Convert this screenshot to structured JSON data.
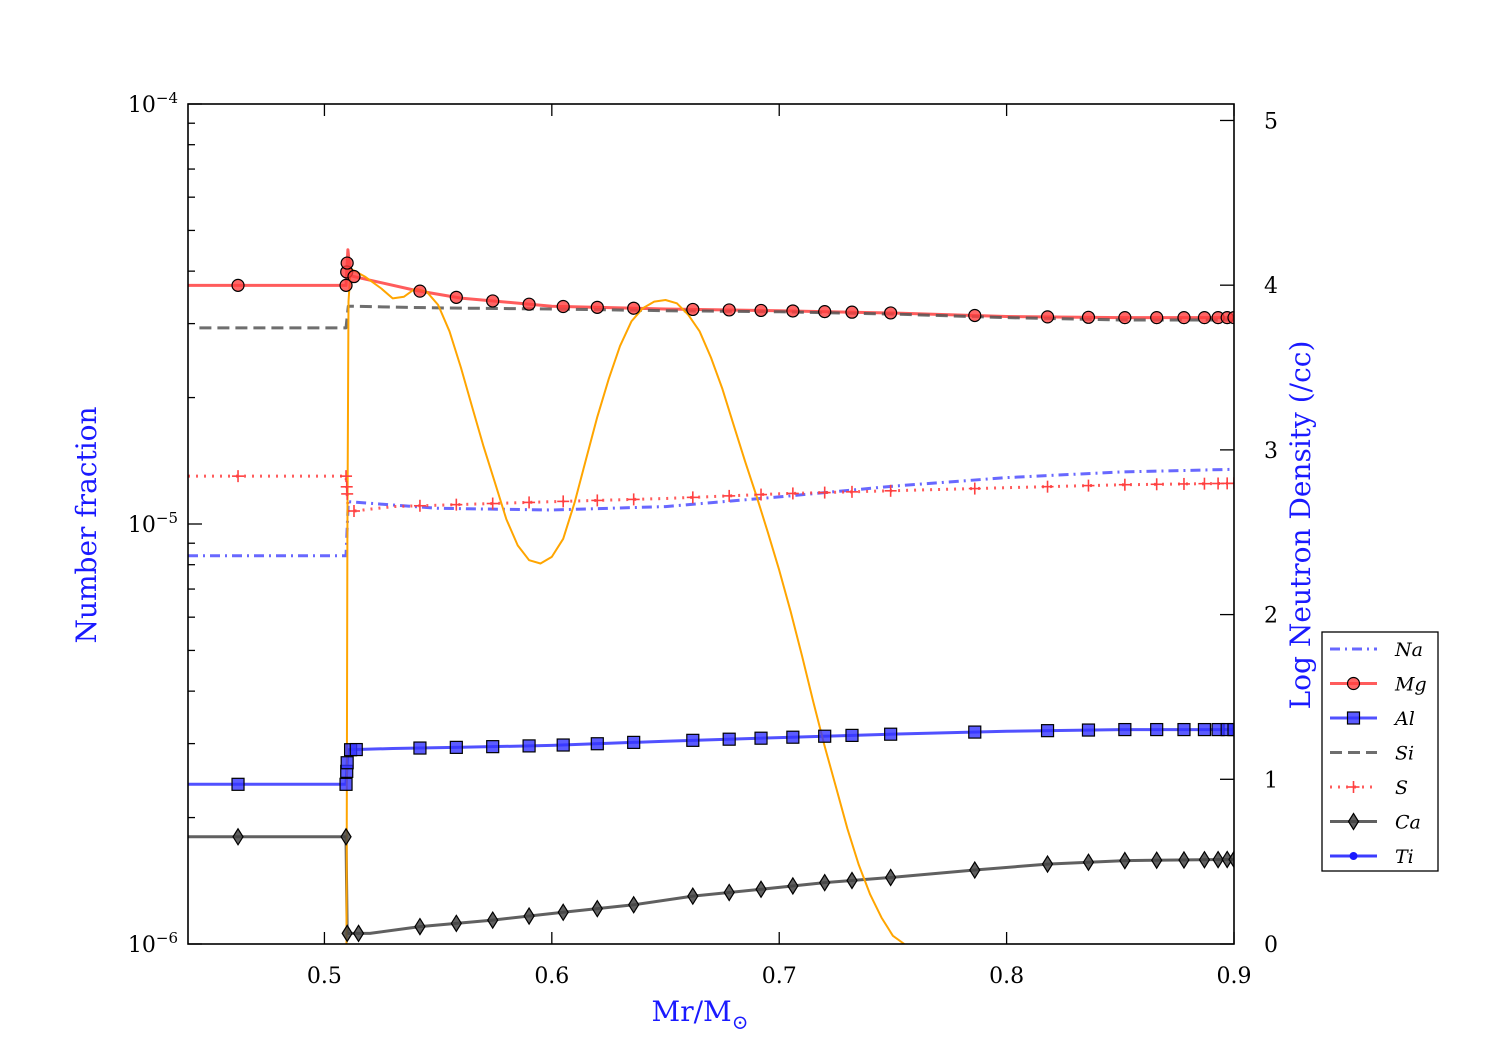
{
  "chart_data": {
    "type": "line",
    "xlabel": "Mr/M",
    "xlabel_sub": "⊙",
    "ylabel_left": "Number fraction",
    "ylabel_right": "Log Neutron Density (/cc)",
    "xlim": [
      0.44,
      0.9
    ],
    "ylim_left": [
      1e-06,
      0.0001
    ],
    "yscale_left": "log",
    "ylim_right": [
      0,
      5.1
    ],
    "x_ticks": [
      "0.5",
      "0.6",
      "0.7",
      "0.8",
      "0.9"
    ],
    "y_left_tick_labels": [
      {
        "value": 1e-06,
        "base": "10",
        "exp": "−6"
      },
      {
        "value": 1e-05,
        "base": "10",
        "exp": "−5"
      },
      {
        "value": 0.0001,
        "base": "10",
        "exp": "−4"
      }
    ],
    "y_right_ticks": [
      "0",
      "1",
      "2",
      "3",
      "4",
      "5"
    ],
    "legend_position": "lower-right",
    "series": [
      {
        "name": "Na",
        "axis": "left",
        "color": "#4d4dff",
        "dash": "dashdot",
        "marker": "none",
        "points": [
          [
            0.44,
            8.4e-06
          ],
          [
            0.5095,
            8.4e-06
          ],
          [
            0.5105,
            1.13e-05
          ],
          [
            0.53,
            1.11e-05
          ],
          [
            0.55,
            1.09e-05
          ],
          [
            0.6,
            1.08e-05
          ],
          [
            0.65,
            1.1e-05
          ],
          [
            0.7,
            1.16e-05
          ],
          [
            0.75,
            1.23e-05
          ],
          [
            0.8,
            1.29e-05
          ],
          [
            0.85,
            1.33e-05
          ],
          [
            0.9,
            1.35e-05
          ]
        ]
      },
      {
        "name": "Mg",
        "axis": "left",
        "color": "#ff4040",
        "dash": "solid",
        "marker": "circle",
        "points": [
          [
            0.44,
            3.7e-05
          ],
          [
            0.5095,
            3.7e-05
          ],
          [
            0.5103,
            4.5e-05
          ],
          [
            0.5115,
            3.9e-05
          ],
          [
            0.54,
            3.6e-05
          ],
          [
            0.56,
            3.45e-05
          ],
          [
            0.6,
            3.3e-05
          ],
          [
            0.65,
            3.25e-05
          ],
          [
            0.7,
            3.22e-05
          ],
          [
            0.75,
            3.18e-05
          ],
          [
            0.8,
            3.12e-05
          ],
          [
            0.85,
            3.1e-05
          ],
          [
            0.9,
            3.1e-05
          ]
        ],
        "marker_x": [
          0.462,
          0.5095,
          0.5098,
          0.51,
          0.513,
          0.542,
          0.558,
          0.574,
          0.59,
          0.605,
          0.62,
          0.636,
          0.662,
          0.678,
          0.692,
          0.706,
          0.72,
          0.732,
          0.749,
          0.786,
          0.818,
          0.836,
          0.852,
          0.866,
          0.878,
          0.887,
          0.893,
          0.897,
          0.9
        ]
      },
      {
        "name": "Al",
        "axis": "left",
        "color": "#3333ff",
        "dash": "solid",
        "marker": "square",
        "points": [
          [
            0.44,
            2.4e-06
          ],
          [
            0.5095,
            2.4e-06
          ],
          [
            0.5103,
            2.9e-06
          ],
          [
            0.53,
            2.92e-06
          ],
          [
            0.56,
            2.94e-06
          ],
          [
            0.6,
            2.97e-06
          ],
          [
            0.65,
            3.04e-06
          ],
          [
            0.7,
            3.1e-06
          ],
          [
            0.75,
            3.16e-06
          ],
          [
            0.8,
            3.21e-06
          ],
          [
            0.85,
            3.24e-06
          ],
          [
            0.9,
            3.24e-06
          ]
        ],
        "marker_x": [
          0.462,
          0.5095,
          0.5098,
          0.51,
          0.5115,
          0.514,
          0.542,
          0.558,
          0.574,
          0.59,
          0.605,
          0.62,
          0.636,
          0.662,
          0.678,
          0.692,
          0.706,
          0.72,
          0.732,
          0.749,
          0.786,
          0.818,
          0.836,
          0.852,
          0.866,
          0.878,
          0.887,
          0.893,
          0.897,
          0.9
        ]
      },
      {
        "name": "Si",
        "axis": "left",
        "color": "#555555",
        "dash": "dashed",
        "marker": "none",
        "points": [
          [
            0.445,
            2.93e-05
          ],
          [
            0.5095,
            2.93e-05
          ],
          [
            0.5105,
            3.3e-05
          ],
          [
            0.55,
            3.27e-05
          ],
          [
            0.6,
            3.25e-05
          ],
          [
            0.65,
            3.22e-05
          ],
          [
            0.7,
            3.2e-05
          ],
          [
            0.75,
            3.16e-05
          ],
          [
            0.8,
            3.1e-05
          ],
          [
            0.85,
            3.06e-05
          ],
          [
            0.9,
            3.06e-05
          ]
        ]
      },
      {
        "name": "S",
        "axis": "left",
        "color": "#ff4040",
        "dash": "dotted",
        "marker": "plus",
        "points": [
          [
            0.44,
            1.3e-05
          ],
          [
            0.5095,
            1.3e-05
          ],
          [
            0.5105,
            1.07e-05
          ],
          [
            0.53,
            1.1e-05
          ],
          [
            0.6,
            1.13e-05
          ],
          [
            0.65,
            1.15e-05
          ],
          [
            0.7,
            1.18e-05
          ],
          [
            0.75,
            1.2e-05
          ],
          [
            0.8,
            1.22e-05
          ],
          [
            0.85,
            1.24e-05
          ],
          [
            0.9,
            1.25e-05
          ]
        ],
        "marker_x": [
          0.462,
          0.5095,
          0.5098,
          0.51,
          0.513,
          0.542,
          0.558,
          0.574,
          0.59,
          0.605,
          0.62,
          0.636,
          0.662,
          0.678,
          0.692,
          0.706,
          0.72,
          0.732,
          0.749,
          0.786,
          0.818,
          0.836,
          0.852,
          0.866,
          0.878,
          0.887,
          0.893,
          0.897,
          0.9
        ]
      },
      {
        "name": "Ca",
        "axis": "left",
        "color": "#444444",
        "dash": "solid",
        "marker": "diamond",
        "points": [
          [
            0.44,
            1.8e-06
          ],
          [
            0.5095,
            1.8e-06
          ],
          [
            0.51,
            1.06e-06
          ],
          [
            0.52,
            1.06e-06
          ],
          [
            0.542,
            1.1e-06
          ],
          [
            0.574,
            1.14e-06
          ],
          [
            0.605,
            1.19e-06
          ],
          [
            0.636,
            1.24e-06
          ],
          [
            0.662,
            1.3e-06
          ],
          [
            0.692,
            1.35e-06
          ],
          [
            0.72,
            1.4e-06
          ],
          [
            0.749,
            1.44e-06
          ],
          [
            0.786,
            1.5e-06
          ],
          [
            0.818,
            1.55e-06
          ],
          [
            0.852,
            1.58e-06
          ],
          [
            0.9,
            1.59e-06
          ]
        ],
        "marker_x": [
          0.462,
          0.5095,
          0.51,
          0.515,
          0.542,
          0.558,
          0.574,
          0.59,
          0.605,
          0.62,
          0.636,
          0.662,
          0.678,
          0.692,
          0.706,
          0.72,
          0.732,
          0.749,
          0.786,
          0.818,
          0.836,
          0.852,
          0.866,
          0.878,
          0.887,
          0.893,
          0.897,
          0.9
        ]
      },
      {
        "name": "Ti",
        "axis": "left",
        "color": "#1a1aff",
        "dash": "solid",
        "marker": "dot",
        "points": []
      },
      {
        "name": "",
        "axis": "right",
        "color": "#ffa500",
        "dash": "solid",
        "marker": "none",
        "points": [
          [
            0.5097,
            0
          ],
          [
            0.5101,
            2.5
          ],
          [
            0.5106,
            3.9
          ],
          [
            0.5115,
            4.1
          ],
          [
            0.518,
            4.05
          ],
          [
            0.525,
            3.98
          ],
          [
            0.53,
            3.92
          ],
          [
            0.535,
            3.93
          ],
          [
            0.54,
            3.98
          ],
          [
            0.545,
            3.96
          ],
          [
            0.55,
            3.88
          ],
          [
            0.555,
            3.72
          ],
          [
            0.56,
            3.5
          ],
          [
            0.565,
            3.26
          ],
          [
            0.57,
            3.02
          ],
          [
            0.575,
            2.8
          ],
          [
            0.58,
            2.58
          ],
          [
            0.585,
            2.42
          ],
          [
            0.59,
            2.33
          ],
          [
            0.595,
            2.31
          ],
          [
            0.6,
            2.35
          ],
          [
            0.605,
            2.46
          ],
          [
            0.61,
            2.68
          ],
          [
            0.615,
            2.94
          ],
          [
            0.62,
            3.2
          ],
          [
            0.625,
            3.43
          ],
          [
            0.63,
            3.63
          ],
          [
            0.635,
            3.78
          ],
          [
            0.64,
            3.86
          ],
          [
            0.645,
            3.9
          ],
          [
            0.65,
            3.91
          ],
          [
            0.655,
            3.89
          ],
          [
            0.66,
            3.82
          ],
          [
            0.665,
            3.72
          ],
          [
            0.67,
            3.56
          ],
          [
            0.675,
            3.37
          ],
          [
            0.68,
            3.15
          ],
          [
            0.685,
            2.93
          ],
          [
            0.69,
            2.72
          ],
          [
            0.695,
            2.5
          ],
          [
            0.7,
            2.27
          ],
          [
            0.705,
            2.02
          ],
          [
            0.71,
            1.75
          ],
          [
            0.715,
            1.47
          ],
          [
            0.72,
            1.2
          ],
          [
            0.725,
            0.95
          ],
          [
            0.73,
            0.7
          ],
          [
            0.735,
            0.48
          ],
          [
            0.74,
            0.3
          ],
          [
            0.745,
            0.16
          ],
          [
            0.75,
            0.05
          ],
          [
            0.755,
            0
          ]
        ]
      }
    ]
  }
}
